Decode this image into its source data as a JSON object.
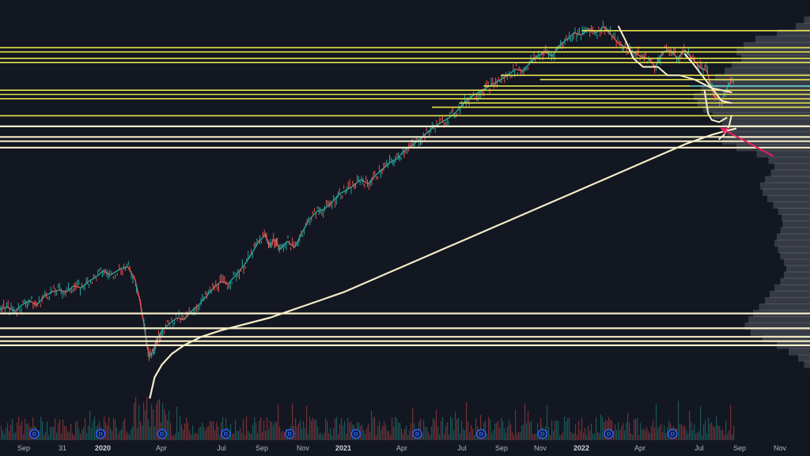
{
  "chart_data": {
    "type": "line",
    "background": "#131722",
    "x_axis": {
      "ticks": [
        "Sep",
        "31",
        "2020",
        "Apr",
        "Jul",
        "Sep",
        "Nov",
        "2021",
        "Apr",
        "Jul",
        "Sep",
        "Nov",
        "2022",
        "Apr",
        "Jul",
        "Sep",
        "Nov"
      ],
      "year_ticks": [
        "2020",
        "2021",
        "2022"
      ]
    },
    "price_series": {
      "name": "",
      "color_up": "#26a69a",
      "color_down": "#ef5350",
      "points": [
        [
          0,
          62
        ],
        [
          0.3,
          63
        ],
        [
          0.6,
          61
        ],
        [
          0.9,
          64
        ],
        [
          1.2,
          66
        ],
        [
          1.5,
          64
        ],
        [
          1.8,
          68
        ],
        [
          2.1,
          70
        ],
        [
          2.4,
          71
        ],
        [
          2.7,
          70
        ],
        [
          3.0,
          73
        ],
        [
          3.3,
          72
        ],
        [
          3.6,
          75
        ],
        [
          3.9,
          77
        ],
        [
          4.2,
          80
        ],
        [
          4.5,
          78
        ],
        [
          4.9,
          81
        ],
        [
          5.2,
          82
        ],
        [
          5.5,
          76
        ],
        [
          5.7,
          66
        ],
        [
          5.85,
          56
        ],
        [
          6.0,
          44
        ],
        [
          6.1,
          40
        ],
        [
          6.25,
          43
        ],
        [
          6.4,
          48
        ],
        [
          6.6,
          52
        ],
        [
          6.9,
          55
        ],
        [
          7.2,
          58
        ],
        [
          7.5,
          57
        ],
        [
          7.8,
          61
        ],
        [
          8.1,
          64
        ],
        [
          8.4,
          68
        ],
        [
          8.7,
          72
        ],
        [
          9.0,
          75
        ],
        [
          9.3,
          74
        ],
        [
          9.6,
          78
        ],
        [
          9.9,
          82
        ],
        [
          10.2,
          87
        ],
        [
          10.5,
          93
        ],
        [
          10.8,
          97
        ],
        [
          11.0,
          92
        ],
        [
          11.2,
          95
        ],
        [
          11.4,
          90
        ],
        [
          11.7,
          94
        ],
        [
          12.0,
          91
        ],
        [
          12.3,
          98
        ],
        [
          12.6,
          104
        ],
        [
          12.9,
          108
        ],
        [
          13.2,
          109
        ],
        [
          13.5,
          112
        ],
        [
          13.8,
          116
        ],
        [
          14.1,
          118
        ],
        [
          14.4,
          120
        ],
        [
          14.7,
          123
        ],
        [
          15.0,
          121
        ],
        [
          15.3,
          125
        ],
        [
          15.6,
          128
        ],
        [
          15.9,
          131
        ],
        [
          16.2,
          133
        ],
        [
          16.5,
          137
        ],
        [
          16.8,
          139
        ],
        [
          17.1,
          142
        ],
        [
          17.4,
          145
        ],
        [
          17.7,
          148
        ],
        [
          18.0,
          150
        ],
        [
          18.3,
          152
        ],
        [
          18.6,
          155
        ],
        [
          18.9,
          159
        ],
        [
          19.2,
          162
        ],
        [
          19.5,
          164
        ],
        [
          19.8,
          166
        ],
        [
          20.1,
          168
        ],
        [
          20.4,
          170
        ],
        [
          20.7,
          172
        ],
        [
          21.0,
          175
        ],
        [
          21.3,
          174
        ],
        [
          21.6,
          178
        ],
        [
          21.9,
          181
        ],
        [
          22.2,
          183
        ],
        [
          22.5,
          181
        ],
        [
          22.8,
          186
        ],
        [
          23.1,
          189
        ],
        [
          23.4,
          192
        ],
        [
          23.7,
          191
        ],
        [
          24.0,
          194
        ],
        [
          24.3,
          192
        ],
        [
          24.6,
          195
        ],
        [
          24.9,
          191
        ],
        [
          25.2,
          187
        ],
        [
          25.5,
          185
        ],
        [
          25.8,
          183
        ],
        [
          26.1,
          181
        ],
        [
          26.4,
          180
        ],
        [
          26.7,
          176
        ],
        [
          27.0,
          183
        ],
        [
          27.3,
          184
        ],
        [
          27.6,
          180
        ],
        [
          27.9,
          184
        ],
        [
          28.2,
          180
        ],
        [
          28.5,
          176
        ],
        [
          28.8,
          174
        ],
        [
          29.1,
          162
        ],
        [
          29.4,
          160
        ],
        [
          29.7,
          168
        ],
        [
          29.9,
          170
        ]
      ]
    },
    "moving_average": {
      "name": "",
      "color": "#f5edc7",
      "points": [
        [
          6.1,
          20
        ],
        [
          6.3,
          30
        ],
        [
          6.6,
          36
        ],
        [
          7.0,
          41
        ],
        [
          7.5,
          45
        ],
        [
          8.2,
          49
        ],
        [
          9.0,
          52
        ],
        [
          10.0,
          55
        ],
        [
          11.0,
          58
        ],
        [
          12.0,
          62
        ],
        [
          13.0,
          66
        ],
        [
          14.0,
          70
        ],
        [
          15.0,
          75
        ],
        [
          16.0,
          80
        ],
        [
          17.0,
          85
        ],
        [
          18.0,
          90
        ],
        [
          19.0,
          95
        ],
        [
          20.0,
          100
        ],
        [
          21.0,
          105
        ],
        [
          22.0,
          110
        ],
        [
          23.0,
          115
        ],
        [
          24.0,
          120
        ],
        [
          25.0,
          125
        ],
        [
          26.0,
          130
        ],
        [
          27.0,
          135
        ],
        [
          28.0,
          140
        ],
        [
          29.0,
          144
        ],
        [
          29.6,
          146
        ],
        [
          30.0,
          147
        ]
      ]
    },
    "freehand_curves": [
      {
        "color": "#f5edc7",
        "points": [
          [
            25.2,
            195
          ],
          [
            25.5,
            188
          ],
          [
            25.8,
            180
          ],
          [
            26.2,
            176
          ],
          [
            26.8,
            176
          ],
          [
            27.2,
            172
          ],
          [
            27.7,
            172
          ],
          [
            28.3,
            170
          ],
          [
            29.0,
            166
          ],
          [
            29.8,
            164
          ]
        ]
      },
      {
        "color": "#f5edc7",
        "points": [
          [
            27.9,
            182
          ],
          [
            28.2,
            178
          ],
          [
            28.6,
            172
          ],
          [
            29.0,
            166
          ],
          [
            29.4,
            160
          ],
          [
            29.8,
            159
          ]
        ]
      },
      {
        "color": "#f5edc7",
        "points": [
          [
            28.7,
            165
          ],
          [
            28.85,
            154
          ],
          [
            29.0,
            151
          ],
          [
            29.3,
            150
          ],
          [
            29.6,
            152
          ]
        ]
      },
      {
        "color": "#f5edc7",
        "points": [
          [
            29.3,
            142
          ],
          [
            29.5,
            144
          ],
          [
            29.7,
            148
          ],
          [
            29.8,
            153
          ]
        ]
      }
    ],
    "horizontal_levels_yellow": {
      "color": "#e6e44a",
      "levels": [
        {
          "y": 193,
          "x_start": 23.7
        },
        {
          "y": 185,
          "x_start": 0
        },
        {
          "y": 183,
          "x_start": 0
        },
        {
          "y": 180,
          "x_start": 0
        },
        {
          "y": 178,
          "x_start": 0
        },
        {
          "y": 172,
          "x_start": 20.4
        },
        {
          "y": 170,
          "x_start": 22.0
        },
        {
          "y": 167,
          "x_start": 19.7
        },
        {
          "y": 165,
          "x_start": 0
        },
        {
          "y": 163,
          "x_start": 0
        },
        {
          "y": 161,
          "x_start": 0
        },
        {
          "y": 159,
          "x_start": 18.7
        },
        {
          "y": 157,
          "x_start": 17.6
        },
        {
          "y": 153,
          "x_start": 0
        }
      ]
    },
    "horizontal_levels_cream": {
      "color": "#f5edc7",
      "levels": [
        148,
        143,
        141,
        138,
        60,
        53,
        49,
        47,
        45
      ]
    },
    "cyan_level": {
      "color": "#4dd0e1",
      "y": 167,
      "x_start": 28.1
    },
    "volume_profile": {
      "color": "#9598a1",
      "rows": [
        [
          198,
          0.05
        ],
        [
          195,
          0.12
        ],
        [
          192,
          0.28
        ],
        [
          189,
          0.46
        ],
        [
          186,
          0.56
        ],
        [
          183,
          0.62
        ],
        [
          180,
          0.58
        ],
        [
          177,
          0.66
        ],
        [
          174,
          0.72
        ],
        [
          171,
          0.8
        ],
        [
          168,
          0.86
        ],
        [
          165,
          0.92
        ],
        [
          162,
          0.98
        ],
        [
          159,
          0.95
        ],
        [
          156,
          0.9
        ],
        [
          153,
          0.82
        ],
        [
          150,
          0.74
        ],
        [
          147,
          0.68
        ],
        [
          144,
          0.7
        ],
        [
          141,
          0.74
        ],
        [
          138,
          0.62
        ],
        [
          135,
          0.45
        ],
        [
          132,
          0.35
        ],
        [
          129,
          0.3
        ],
        [
          126,
          0.33
        ],
        [
          123,
          0.38
        ],
        [
          120,
          0.42
        ],
        [
          117,
          0.4
        ],
        [
          114,
          0.36
        ],
        [
          111,
          0.31
        ],
        [
          108,
          0.27
        ],
        [
          105,
          0.24
        ],
        [
          102,
          0.23
        ],
        [
          99,
          0.25
        ],
        [
          96,
          0.28
        ],
        [
          93,
          0.3
        ],
        [
          90,
          0.27
        ],
        [
          87,
          0.25
        ],
        [
          84,
          0.22
        ],
        [
          81,
          0.2
        ],
        [
          78,
          0.22
        ],
        [
          75,
          0.25
        ],
        [
          72,
          0.3
        ],
        [
          69,
          0.34
        ],
        [
          66,
          0.38
        ],
        [
          63,
          0.43
        ],
        [
          60,
          0.48
        ],
        [
          57,
          0.52
        ],
        [
          54,
          0.55
        ],
        [
          51,
          0.5
        ],
        [
          48,
          0.4
        ],
        [
          45,
          0.28
        ],
        [
          42,
          0.18
        ],
        [
          39,
          0.1
        ],
        [
          36,
          0.05
        ]
      ]
    },
    "volume_histogram": {
      "color_up": "#26a69a",
      "color_down": "#ef5350"
    },
    "dividend_markers": {
      "label": "D",
      "color": "#2962ff",
      "x": [
        1.4,
        4.1,
        6.6,
        9.2,
        11.8,
        14.5,
        17.0,
        19.6,
        22.1,
        24.8,
        27.4
      ]
    },
    "annotation_arrow": {
      "color": "#e91e63",
      "from": [
        31.5,
        134
      ],
      "to": [
        29.4,
        147
      ]
    }
  }
}
